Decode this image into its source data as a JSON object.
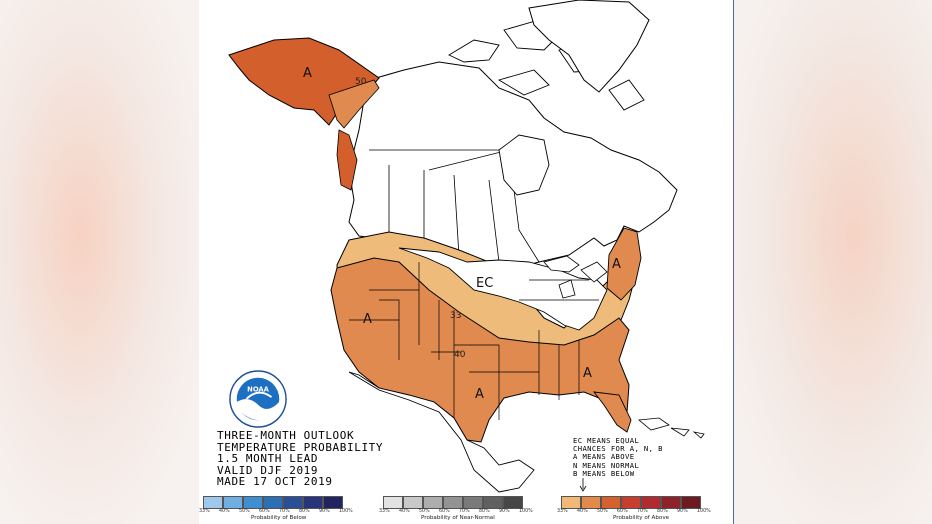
{
  "title_block": {
    "line1": "THREE-MONTH OUTLOOK",
    "line2": "TEMPERATURE PROBABILITY",
    "line3": "1.5 MONTH LEAD",
    "line4": "VALID DJF 2019",
    "line5": "MADE 17 OCT 2019"
  },
  "key_note": {
    "line1": "EC MEANS EQUAL",
    "line2": "CHANCES FOR A, N, B",
    "line3": "A MEANS ABOVE",
    "line4": "N MEANS NORMAL",
    "line5": "B MEANS BELOW"
  },
  "logo": {
    "text": "NOAA",
    "icon": "noaa-logo"
  },
  "map_labels": {
    "alaska": "A",
    "alaska_contour": "50",
    "ec": "EC",
    "west": "A",
    "south_central": "A",
    "southeast": "A",
    "northeast": "A",
    "contour_33": "33",
    "contour_40": "40"
  },
  "legend": {
    "below": {
      "caption": "Probability of Below",
      "ticks": [
        "33%",
        "40%",
        "50%",
        "60%",
        "70%",
        "80%",
        "90%",
        "100%"
      ],
      "colors": [
        "#9fc8ea",
        "#6eaee0",
        "#3f8fd0",
        "#2d6fb5",
        "#2a4f97",
        "#27367a",
        "#21245e"
      ]
    },
    "near_normal": {
      "caption": "Probability of Near-Normal",
      "ticks": [
        "33%",
        "40%",
        "50%",
        "60%",
        "70%",
        "80%",
        "90%",
        "100%"
      ],
      "colors": [
        "#e2e2e2",
        "#c8c8c8",
        "#adadad",
        "#939393",
        "#7a7a7a",
        "#606060",
        "#464646"
      ]
    },
    "above": {
      "caption": "Probability of Above",
      "ticks": [
        "33%",
        "40%",
        "50%",
        "60%",
        "70%",
        "80%",
        "90%",
        "100%"
      ],
      "colors": [
        "#f0b978",
        "#e38a4a",
        "#d5612f",
        "#c73d2e",
        "#b12a2f",
        "#8e2229",
        "#6d1a20"
      ]
    }
  },
  "colors": {
    "prob_33_40": "#eebb7a",
    "prob_40_50": "#e08a4f",
    "prob_50_60": "#d35f2c",
    "border": "#000000"
  }
}
